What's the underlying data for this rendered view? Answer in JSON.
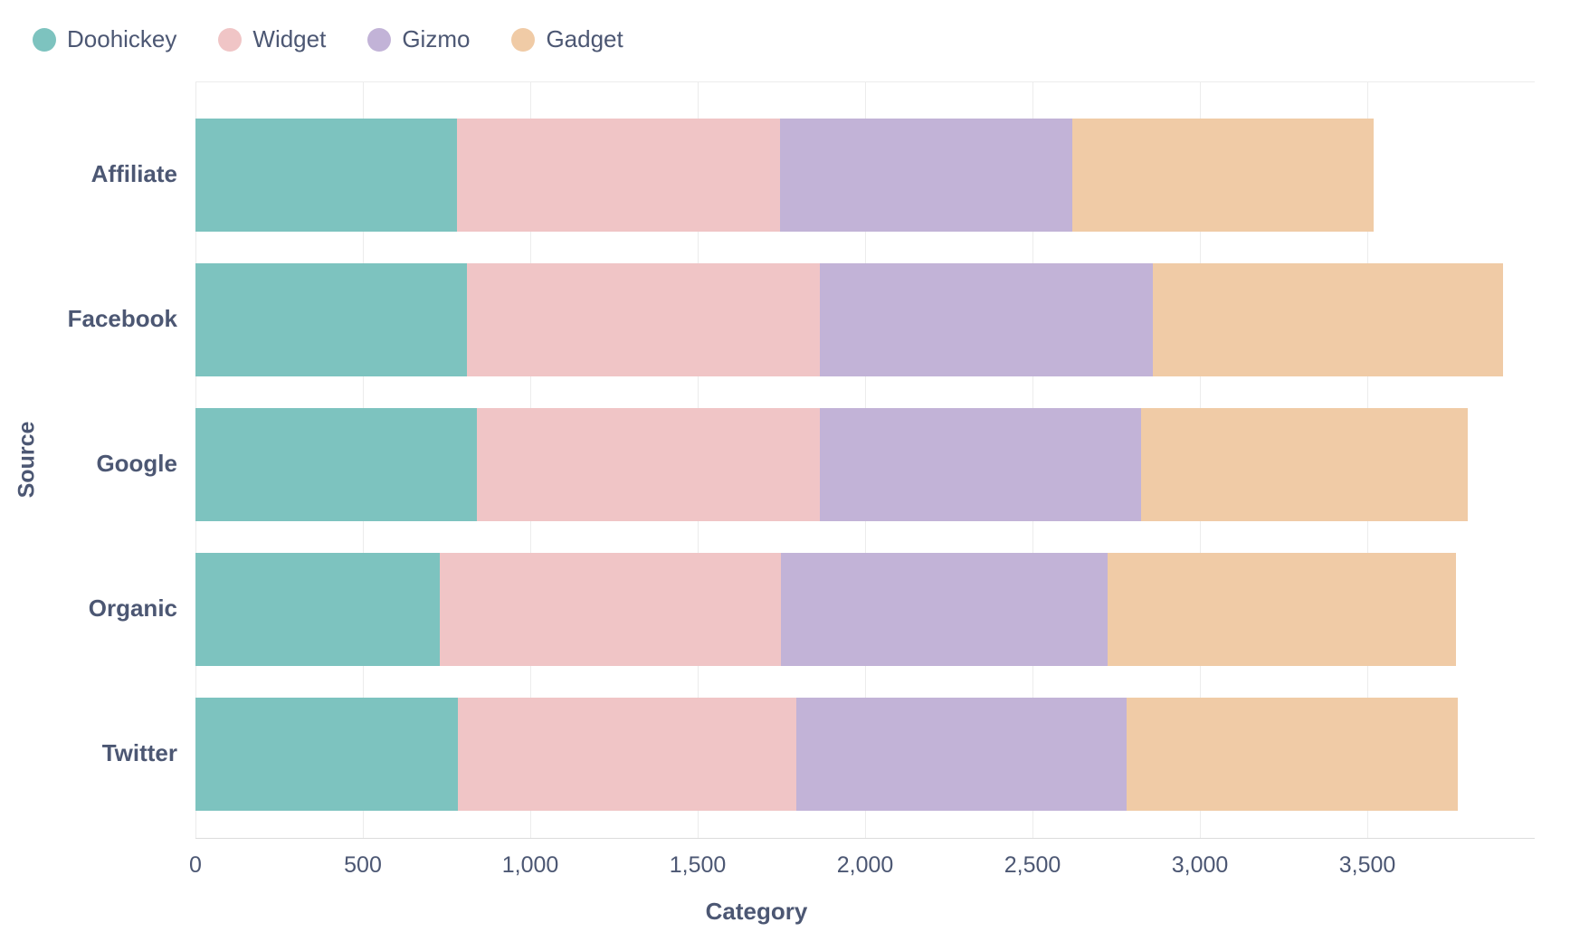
{
  "chart_data": {
    "type": "bar",
    "orientation": "horizontal",
    "stacked": true,
    "grid": true,
    "legend_position": "top-left",
    "categories": [
      "Affiliate",
      "Facebook",
      "Google",
      "Organic",
      "Twitter"
    ],
    "series": [
      {
        "name": "Doohickey",
        "color": "#7DC3BF",
        "values": [
          780,
          810,
          840,
          730,
          785
        ]
      },
      {
        "name": "Widget",
        "color": "#F0C5C6",
        "values": [
          965,
          1055,
          1025,
          1020,
          1010
        ]
      },
      {
        "name": "Gizmo",
        "color": "#C2B3D7",
        "values": [
          875,
          995,
          960,
          975,
          985
        ]
      },
      {
        "name": "Gadget",
        "color": "#F0CBA6",
        "values": [
          900,
          1045,
          975,
          1040,
          990
        ]
      }
    ],
    "totals": [
      3520,
      3905,
      3800,
      3765,
      3770
    ],
    "xlabel": "Category",
    "ylabel": "Source",
    "xlim": [
      0,
      4000
    ],
    "x_tick_values": [
      0,
      500,
      1000,
      1500,
      2000,
      2500,
      3000,
      3500
    ],
    "x_tick_labels": [
      "0",
      "500",
      "1,000",
      "1,500",
      "2,000",
      "2,500",
      "3,000",
      "3,500"
    ]
  },
  "colors": {
    "text": "#4C5773",
    "gridline": "#ECECEC",
    "axis_line": "#DCDCDC",
    "background": "#FFFFFF"
  }
}
